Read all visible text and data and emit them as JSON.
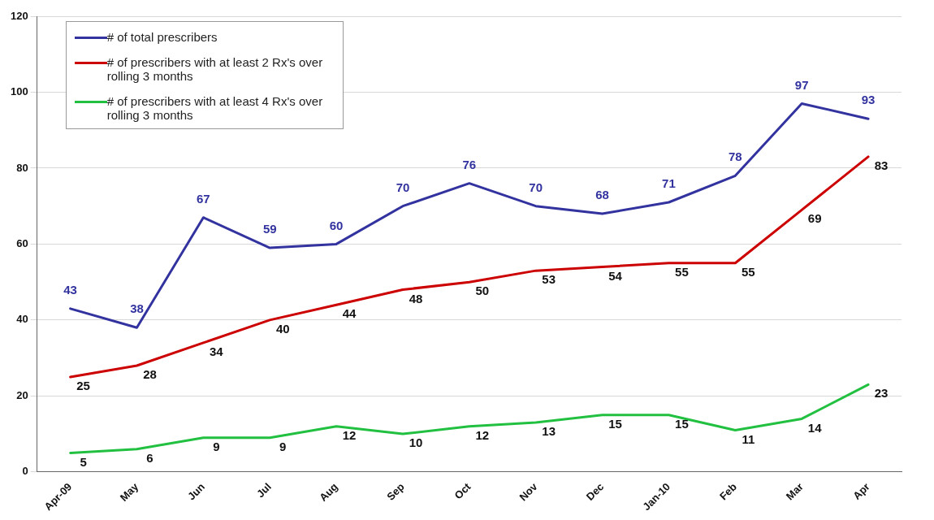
{
  "chart_data": {
    "type": "line",
    "categories": [
      "Apr-09",
      "May",
      "Jun",
      "Jul",
      "Aug",
      "Sep",
      "Oct",
      "Nov",
      "Dec",
      "Jan-10",
      "Feb",
      "Mar",
      "Apr"
    ],
    "series": [
      {
        "name": "# of total prescribers",
        "color": "#3333a0",
        "values": [
          43,
          38,
          67,
          59,
          60,
          70,
          76,
          70,
          68,
          71,
          78,
          97,
          93
        ]
      },
      {
        "name": "# of prescribers with at least 2 Rx's over rolling 3 months",
        "color": "#cc0000",
        "values": [
          25,
          28,
          34,
          40,
          44,
          48,
          50,
          53,
          54,
          55,
          55,
          69,
          83
        ]
      },
      {
        "name": "# of prescribers with at least 4 Rx's over rolling 3 months",
        "color": "#22c040",
        "values": [
          5,
          6,
          9,
          9,
          12,
          10,
          12,
          13,
          15,
          15,
          11,
          14,
          23
        ]
      }
    ],
    "ylim": [
      0,
      120
    ],
    "yticks": [
      0,
      20,
      40,
      60,
      80,
      100,
      120
    ],
    "grid": "y",
    "legend": "top left",
    "marker": "none",
    "line_style": "solid",
    "data_labels": true
  }
}
